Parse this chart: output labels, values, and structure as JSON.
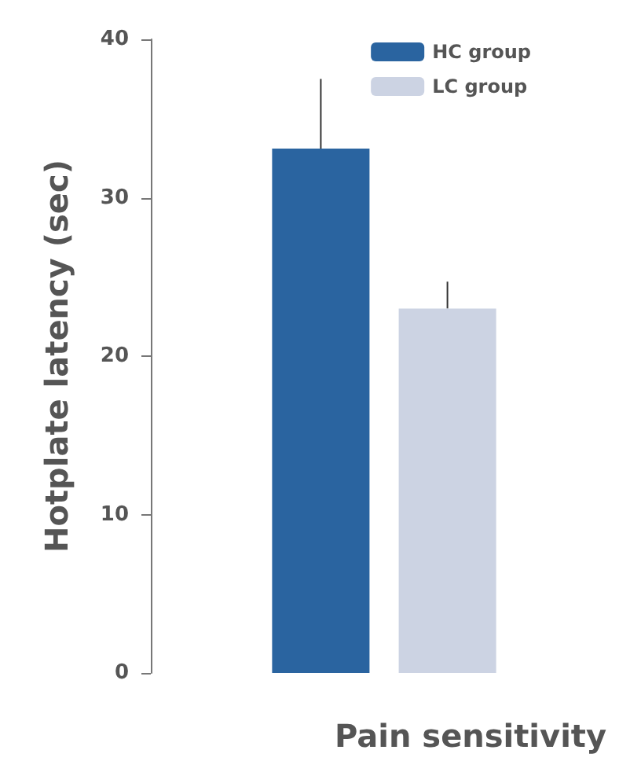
{
  "chart_data": {
    "type": "bar",
    "xlabel": "Pain sensitivity",
    "ylabel": "Hotplate latency (sec)",
    "categories": [
      null
    ],
    "series": [
      {
        "name": "HC group",
        "color": "#2a64a0",
        "values": [
          33.1
        ],
        "errors": [
          [
            33.1,
            37.5
          ]
        ]
      },
      {
        "name": "LC group",
        "color": "#ccd3e3",
        "values": [
          23.0
        ],
        "errors": [
          [
            23.0,
            24.7
          ]
        ]
      }
    ],
    "ylim": [
      0,
      40
    ],
    "yticks": [
      0,
      10,
      20,
      30,
      40
    ],
    "grid": false,
    "legend": "top right"
  }
}
